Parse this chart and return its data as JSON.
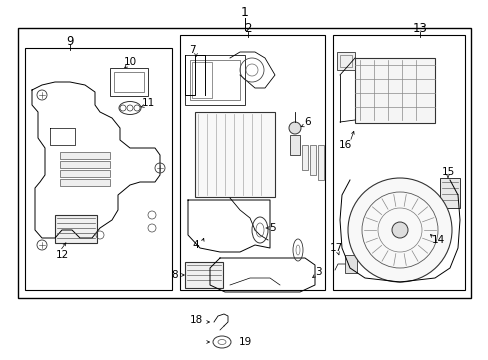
{
  "bg_color": "#ffffff",
  "border_color": "#000000",
  "text_color": "#000000",
  "fig_width": 4.89,
  "fig_height": 3.6,
  "dpi": 100
}
